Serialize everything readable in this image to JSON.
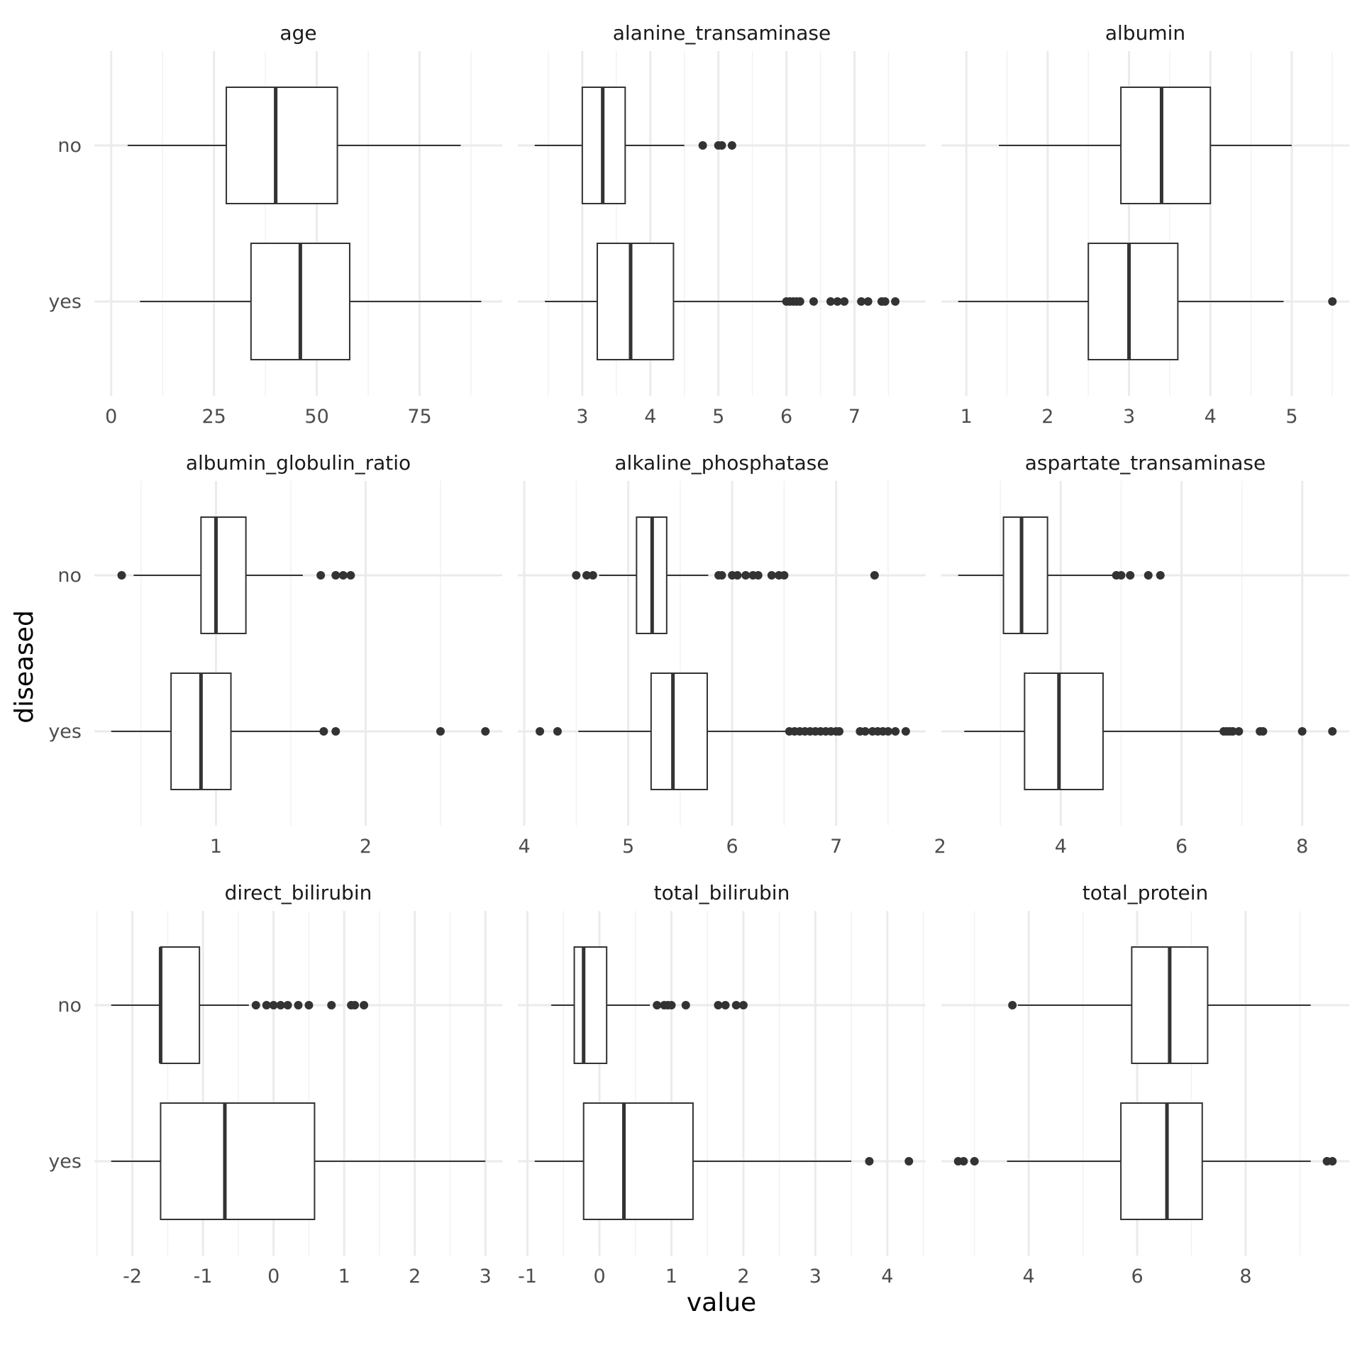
{
  "axes": {
    "xlabel": "value",
    "ylabel": "diseased",
    "categories": [
      "no",
      "yes"
    ]
  },
  "chart_data": [
    {
      "type": "boxplot",
      "title": "age",
      "xlim": [
        0,
        91
      ],
      "ticks": [
        0,
        25,
        50,
        75
      ],
      "tick_labels": [
        "0",
        "25",
        "50",
        "75"
      ],
      "boxes": [
        {
          "category": "no",
          "whisker_low": 4,
          "q1": 28,
          "median": 40,
          "q3": 55,
          "whisker_high": 85,
          "outliers": []
        },
        {
          "category": "yes",
          "whisker_low": 7,
          "q1": 34,
          "median": 46,
          "q3": 58,
          "whisker_high": 90,
          "outliers": []
        }
      ]
    },
    {
      "type": "boxplot",
      "title": "alanine_transaminase",
      "xlim": [
        2.3,
        7.8
      ],
      "ticks": [
        3,
        4,
        5,
        6,
        7
      ],
      "tick_labels": [
        "3",
        "4",
        "5",
        "6",
        "7"
      ],
      "boxes": [
        {
          "category": "no",
          "whisker_low": 2.3,
          "q1": 3.0,
          "median": 3.3,
          "q3": 3.63,
          "whisker_high": 4.5,
          "outliers": [
            4.77,
            5.0,
            5.05,
            5.2
          ]
        },
        {
          "category": "yes",
          "whisker_low": 2.45,
          "q1": 3.22,
          "median": 3.71,
          "q3": 4.34,
          "whisker_high": 6.0,
          "outliers": [
            6.0,
            6.05,
            6.1,
            6.15,
            6.2,
            6.4,
            6.65,
            6.75,
            6.85,
            7.1,
            7.2,
            7.4,
            7.45,
            7.6
          ]
        }
      ]
    },
    {
      "type": "boxplot",
      "title": "albumin",
      "xlim": [
        0.9,
        5.5
      ],
      "ticks": [
        1,
        2,
        3,
        4,
        5
      ],
      "tick_labels": [
        "1",
        "2",
        "3",
        "4",
        "5"
      ],
      "boxes": [
        {
          "category": "no",
          "whisker_low": 1.4,
          "q1": 2.9,
          "median": 3.4,
          "q3": 4.0,
          "whisker_high": 5.0,
          "outliers": []
        },
        {
          "category": "yes",
          "whisker_low": 0.9,
          "q1": 2.5,
          "median": 3.0,
          "q3": 3.6,
          "whisker_high": 4.9,
          "outliers": [
            5.5
          ]
        }
      ]
    },
    {
      "type": "boxplot",
      "title": "albumin_globulin_ratio",
      "xlim": [
        0.3,
        2.8
      ],
      "ticks": [
        1,
        2
      ],
      "tick_labels": [
        "1",
        "2"
      ],
      "boxes": [
        {
          "category": "no",
          "whisker_low": 0.45,
          "q1": 0.9,
          "median": 1.0,
          "q3": 1.2,
          "whisker_high": 1.58,
          "outliers": [
            0.37,
            1.7,
            1.8,
            1.85,
            1.9
          ]
        },
        {
          "category": "yes",
          "whisker_low": 0.3,
          "q1": 0.7,
          "median": 0.9,
          "q3": 1.1,
          "whisker_high": 1.7,
          "outliers": [
            1.72,
            1.8,
            2.5,
            2.8
          ]
        }
      ]
    },
    {
      "type": "boxplot",
      "title": "alkaline_phosphatase",
      "xlim": [
        4.1,
        7.7
      ],
      "ticks": [
        4,
        5,
        6,
        7
      ],
      "tick_labels": [
        "4",
        "5",
        "6",
        "7"
      ],
      "boxes": [
        {
          "category": "no",
          "whisker_low": 4.72,
          "q1": 5.08,
          "median": 5.23,
          "q3": 5.37,
          "whisker_high": 5.77,
          "outliers": [
            4.5,
            4.6,
            4.66,
            5.87,
            5.9,
            6.0,
            6.05,
            6.13,
            6.2,
            6.25,
            6.38,
            6.45,
            6.5,
            7.37
          ]
        },
        {
          "category": "yes",
          "whisker_low": 4.52,
          "q1": 5.22,
          "median": 5.43,
          "q3": 5.76,
          "whisker_high": 6.55,
          "outliers": [
            4.15,
            4.32,
            6.55,
            6.6,
            6.65,
            6.7,
            6.75,
            6.8,
            6.85,
            6.9,
            6.95,
            7.0,
            7.03,
            7.23,
            7.28,
            7.35,
            7.4,
            7.45,
            7.5,
            7.57,
            7.67
          ]
        }
      ]
    },
    {
      "type": "boxplot",
      "title": "aspartate_transaminase",
      "xlim": [
        2.3,
        8.5
      ],
      "ticks": [
        2,
        4,
        6,
        8
      ],
      "tick_labels": [
        "2",
        "4",
        "6",
        "8"
      ],
      "boxes": [
        {
          "category": "no",
          "whisker_low": 2.3,
          "q1": 3.05,
          "median": 3.35,
          "q3": 3.78,
          "whisker_high": 4.9,
          "outliers": [
            4.92,
            5.0,
            5.15,
            5.45,
            5.65
          ]
        },
        {
          "category": "yes",
          "whisker_low": 2.4,
          "q1": 3.4,
          "median": 3.97,
          "q3": 4.7,
          "whisker_high": 6.65,
          "outliers": [
            6.7,
            6.75,
            6.8,
            6.85,
            6.95,
            7.3,
            7.35,
            8.0,
            8.5
          ]
        }
      ]
    },
    {
      "type": "boxplot",
      "title": "direct_bilirubin",
      "xlim": [
        -2.3,
        3.0
      ],
      "ticks": [
        -2,
        -1,
        0,
        1,
        2,
        3
      ],
      "tick_labels": [
        "-2",
        "-1",
        "0",
        "1",
        "2",
        "3"
      ],
      "boxes": [
        {
          "category": "no",
          "whisker_low": -2.3,
          "q1": -1.6,
          "median": -1.6,
          "q3": -1.05,
          "whisker_high": -0.35,
          "outliers": [
            -0.25,
            -0.1,
            0.0,
            0.1,
            0.2,
            0.35,
            0.5,
            0.82,
            1.1,
            1.15,
            1.28
          ]
        },
        {
          "category": "yes",
          "whisker_low": -2.3,
          "q1": -1.6,
          "median": -0.69,
          "q3": 0.58,
          "whisker_high": 3.0,
          "outliers": []
        }
      ]
    },
    {
      "type": "boxplot",
      "title": "total_bilirubin",
      "xlim": [
        -0.9,
        4.3
      ],
      "ticks": [
        -1,
        0,
        1,
        2,
        3,
        4
      ],
      "tick_labels": [
        "-1",
        "0",
        "1",
        "2",
        "3",
        "4"
      ],
      "boxes": [
        {
          "category": "no",
          "whisker_low": -0.67,
          "q1": -0.35,
          "median": -0.22,
          "q3": 0.1,
          "whisker_high": 0.7,
          "outliers": [
            0.8,
            0.9,
            0.95,
            1.0,
            1.2,
            1.65,
            1.75,
            1.9,
            2.0
          ]
        },
        {
          "category": "yes",
          "whisker_low": -0.9,
          "q1": -0.22,
          "median": 0.34,
          "q3": 1.3,
          "whisker_high": 3.5,
          "outliers": [
            3.75,
            4.3
          ]
        }
      ]
    },
    {
      "type": "boxplot",
      "title": "total_protein",
      "xlim": [
        2.7,
        9.6
      ],
      "ticks": [
        4,
        6,
        8
      ],
      "tick_labels": [
        "4",
        "6",
        "8"
      ],
      "boxes": [
        {
          "category": "no",
          "whisker_low": 3.8,
          "q1": 5.9,
          "median": 6.6,
          "q3": 7.3,
          "whisker_high": 9.2,
          "outliers": [
            3.7
          ]
        },
        {
          "category": "yes",
          "whisker_low": 3.6,
          "q1": 5.7,
          "median": 6.55,
          "q3": 7.2,
          "whisker_high": 9.2,
          "outliers": [
            2.7,
            2.8,
            3.0,
            9.5,
            9.6
          ]
        }
      ]
    }
  ]
}
